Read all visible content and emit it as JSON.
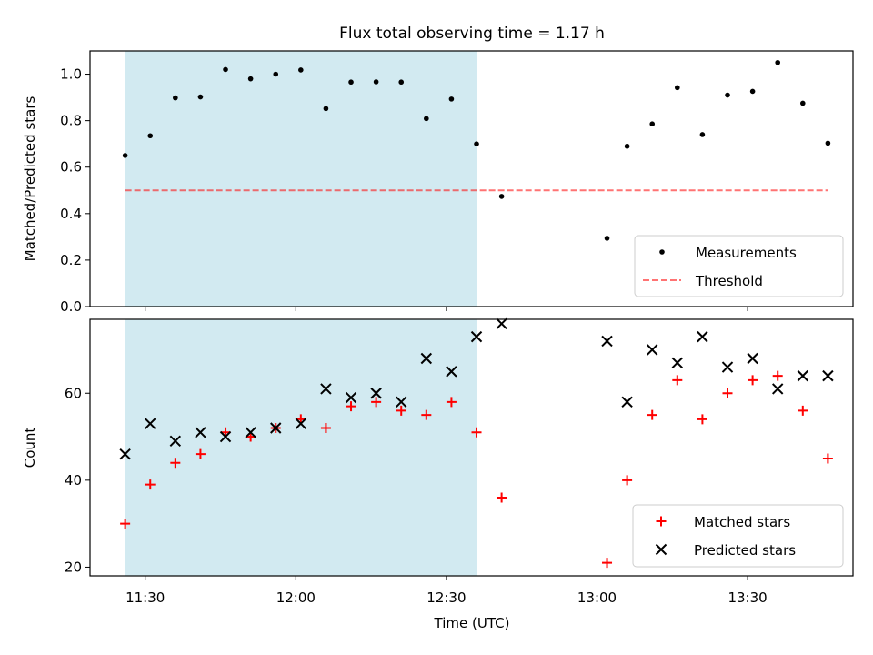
{
  "title": "Flux total observing time = 1.17 h",
  "colors": {
    "shade": "#add8e6",
    "measurement": "#000000",
    "threshold": "#ff0000",
    "matched": "#ff0000",
    "predicted": "#000000"
  },
  "chart_data": [
    {
      "type": "scatter",
      "panel": "top",
      "ylabel": "Matched/Predicted stars",
      "ylim": [
        0,
        1.1
      ],
      "yticks": [
        0.0,
        0.2,
        0.4,
        0.6,
        0.8,
        1.0
      ],
      "ytick_labels": [
        "0.0",
        "0.2",
        "0.4",
        "0.6",
        "0.8",
        "1.0"
      ],
      "shaded_region": [
        "11:26",
        "12:36"
      ],
      "threshold": {
        "value": 0.5,
        "range": [
          "11:26",
          "13:46"
        ]
      },
      "legend": {
        "placement": "lower right",
        "labels": [
          "Measurements",
          "Threshold"
        ]
      },
      "series": [
        {
          "name": "Measurements",
          "marker": "dot",
          "points": [
            [
              "11:26",
              0.65
            ],
            [
              "11:31",
              0.735
            ],
            [
              "11:36",
              0.898
            ],
            [
              "11:41",
              0.902
            ],
            [
              "11:46",
              1.02
            ],
            [
              "11:51",
              0.98
            ],
            [
              "11:56",
              1.0
            ],
            [
              "12:01",
              1.018
            ],
            [
              "12:06",
              0.852
            ],
            [
              "12:11",
              0.966
            ],
            [
              "12:16",
              0.967
            ],
            [
              "12:21",
              0.966
            ],
            [
              "12:26",
              0.809
            ],
            [
              "12:31",
              0.893
            ],
            [
              "12:36",
              0.7
            ],
            [
              "12:41",
              0.474
            ],
            [
              "13:02",
              0.294
            ],
            [
              "13:06",
              0.69
            ],
            [
              "13:11",
              0.786
            ],
            [
              "13:16",
              0.942
            ],
            [
              "13:21",
              0.74
            ],
            [
              "13:26",
              0.91
            ],
            [
              "13:31",
              0.926
            ],
            [
              "13:36",
              1.05
            ],
            [
              "13:41",
              0.875
            ],
            [
              "13:46",
              0.703
            ]
          ]
        }
      ]
    },
    {
      "type": "scatter",
      "panel": "bottom",
      "xlabel": "Time (UTC)",
      "ylabel": "Count",
      "xlim": [
        "11:19",
        "13:51"
      ],
      "xticks": [
        "11:30",
        "12:00",
        "12:30",
        "13:00",
        "13:30"
      ],
      "ylim": [
        18,
        77
      ],
      "yticks": [
        20,
        40,
        60
      ],
      "ytick_labels": [
        "20",
        "40",
        "60"
      ],
      "shaded_region": [
        "11:26",
        "12:36"
      ],
      "legend": {
        "placement": "lower right",
        "labels": [
          "Matched stars",
          "Predicted stars"
        ]
      },
      "series": [
        {
          "name": "Matched stars",
          "marker": "plus",
          "points": [
            [
              "11:26",
              30
            ],
            [
              "11:31",
              39
            ],
            [
              "11:36",
              44
            ],
            [
              "11:41",
              46
            ],
            [
              "11:46",
              51
            ],
            [
              "11:51",
              50
            ],
            [
              "11:56",
              52
            ],
            [
              "12:01",
              54
            ],
            [
              "12:06",
              52
            ],
            [
              "12:11",
              57
            ],
            [
              "12:16",
              58
            ],
            [
              "12:21",
              56
            ],
            [
              "12:26",
              55
            ],
            [
              "12:31",
              58
            ],
            [
              "12:36",
              51
            ],
            [
              "12:41",
              36
            ],
            [
              "13:02",
              21
            ],
            [
              "13:06",
              40
            ],
            [
              "13:11",
              55
            ],
            [
              "13:16",
              63
            ],
            [
              "13:21",
              54
            ],
            [
              "13:26",
              60
            ],
            [
              "13:31",
              63
            ],
            [
              "13:36",
              64
            ],
            [
              "13:41",
              56
            ],
            [
              "13:46",
              45
            ]
          ]
        },
        {
          "name": "Predicted stars",
          "marker": "x",
          "points": [
            [
              "11:26",
              46
            ],
            [
              "11:31",
              53
            ],
            [
              "11:36",
              49
            ],
            [
              "11:41",
              51
            ],
            [
              "11:46",
              50
            ],
            [
              "11:51",
              51
            ],
            [
              "11:56",
              52
            ],
            [
              "12:01",
              53
            ],
            [
              "12:06",
              61
            ],
            [
              "12:11",
              59
            ],
            [
              "12:16",
              60
            ],
            [
              "12:21",
              58
            ],
            [
              "12:26",
              68
            ],
            [
              "12:31",
              65
            ],
            [
              "12:36",
              73
            ],
            [
              "12:41",
              76
            ],
            [
              "13:02",
              72
            ],
            [
              "13:06",
              58
            ],
            [
              "13:11",
              70
            ],
            [
              "13:16",
              67
            ],
            [
              "13:21",
              73
            ],
            [
              "13:26",
              66
            ],
            [
              "13:31",
              68
            ],
            [
              "13:36",
              61
            ],
            [
              "13:41",
              64
            ],
            [
              "13:46",
              64
            ]
          ]
        }
      ]
    }
  ]
}
